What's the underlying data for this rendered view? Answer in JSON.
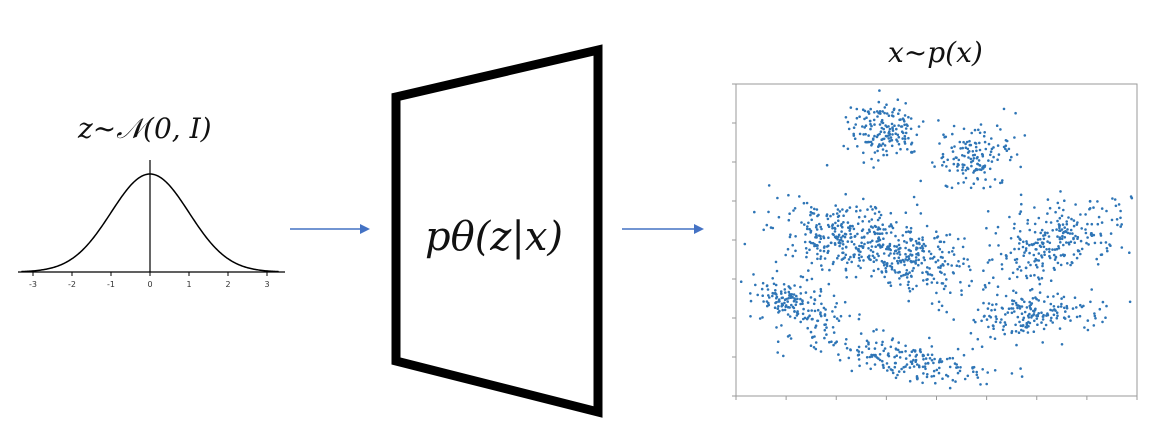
{
  "prior": {
    "label": "z~𝒩(0, I)",
    "x_ticks": [
      "-3",
      "-2",
      "-1",
      "0",
      "1",
      "2",
      "3"
    ]
  },
  "decoder": {
    "label": "pθ(z|x)"
  },
  "output": {
    "label": "x~p(x)"
  },
  "colors": {
    "arrow": "#4472C4",
    "points": "#2E75B6",
    "curve": "#000000",
    "frame": "#000000"
  },
  "clusters": [
    {
      "name": "cluster-top-left",
      "n": 170
    },
    {
      "name": "cluster-top-right",
      "n": 150
    },
    {
      "name": "cluster-mid-left",
      "n": 260
    },
    {
      "name": "cluster-center",
      "n": 260
    },
    {
      "name": "cluster-right",
      "n": 280
    },
    {
      "name": "cluster-bottom-left",
      "n": 170
    },
    {
      "name": "cluster-bottom-right",
      "n": 190
    },
    {
      "name": "cluster-bottom",
      "n": 210
    }
  ]
}
